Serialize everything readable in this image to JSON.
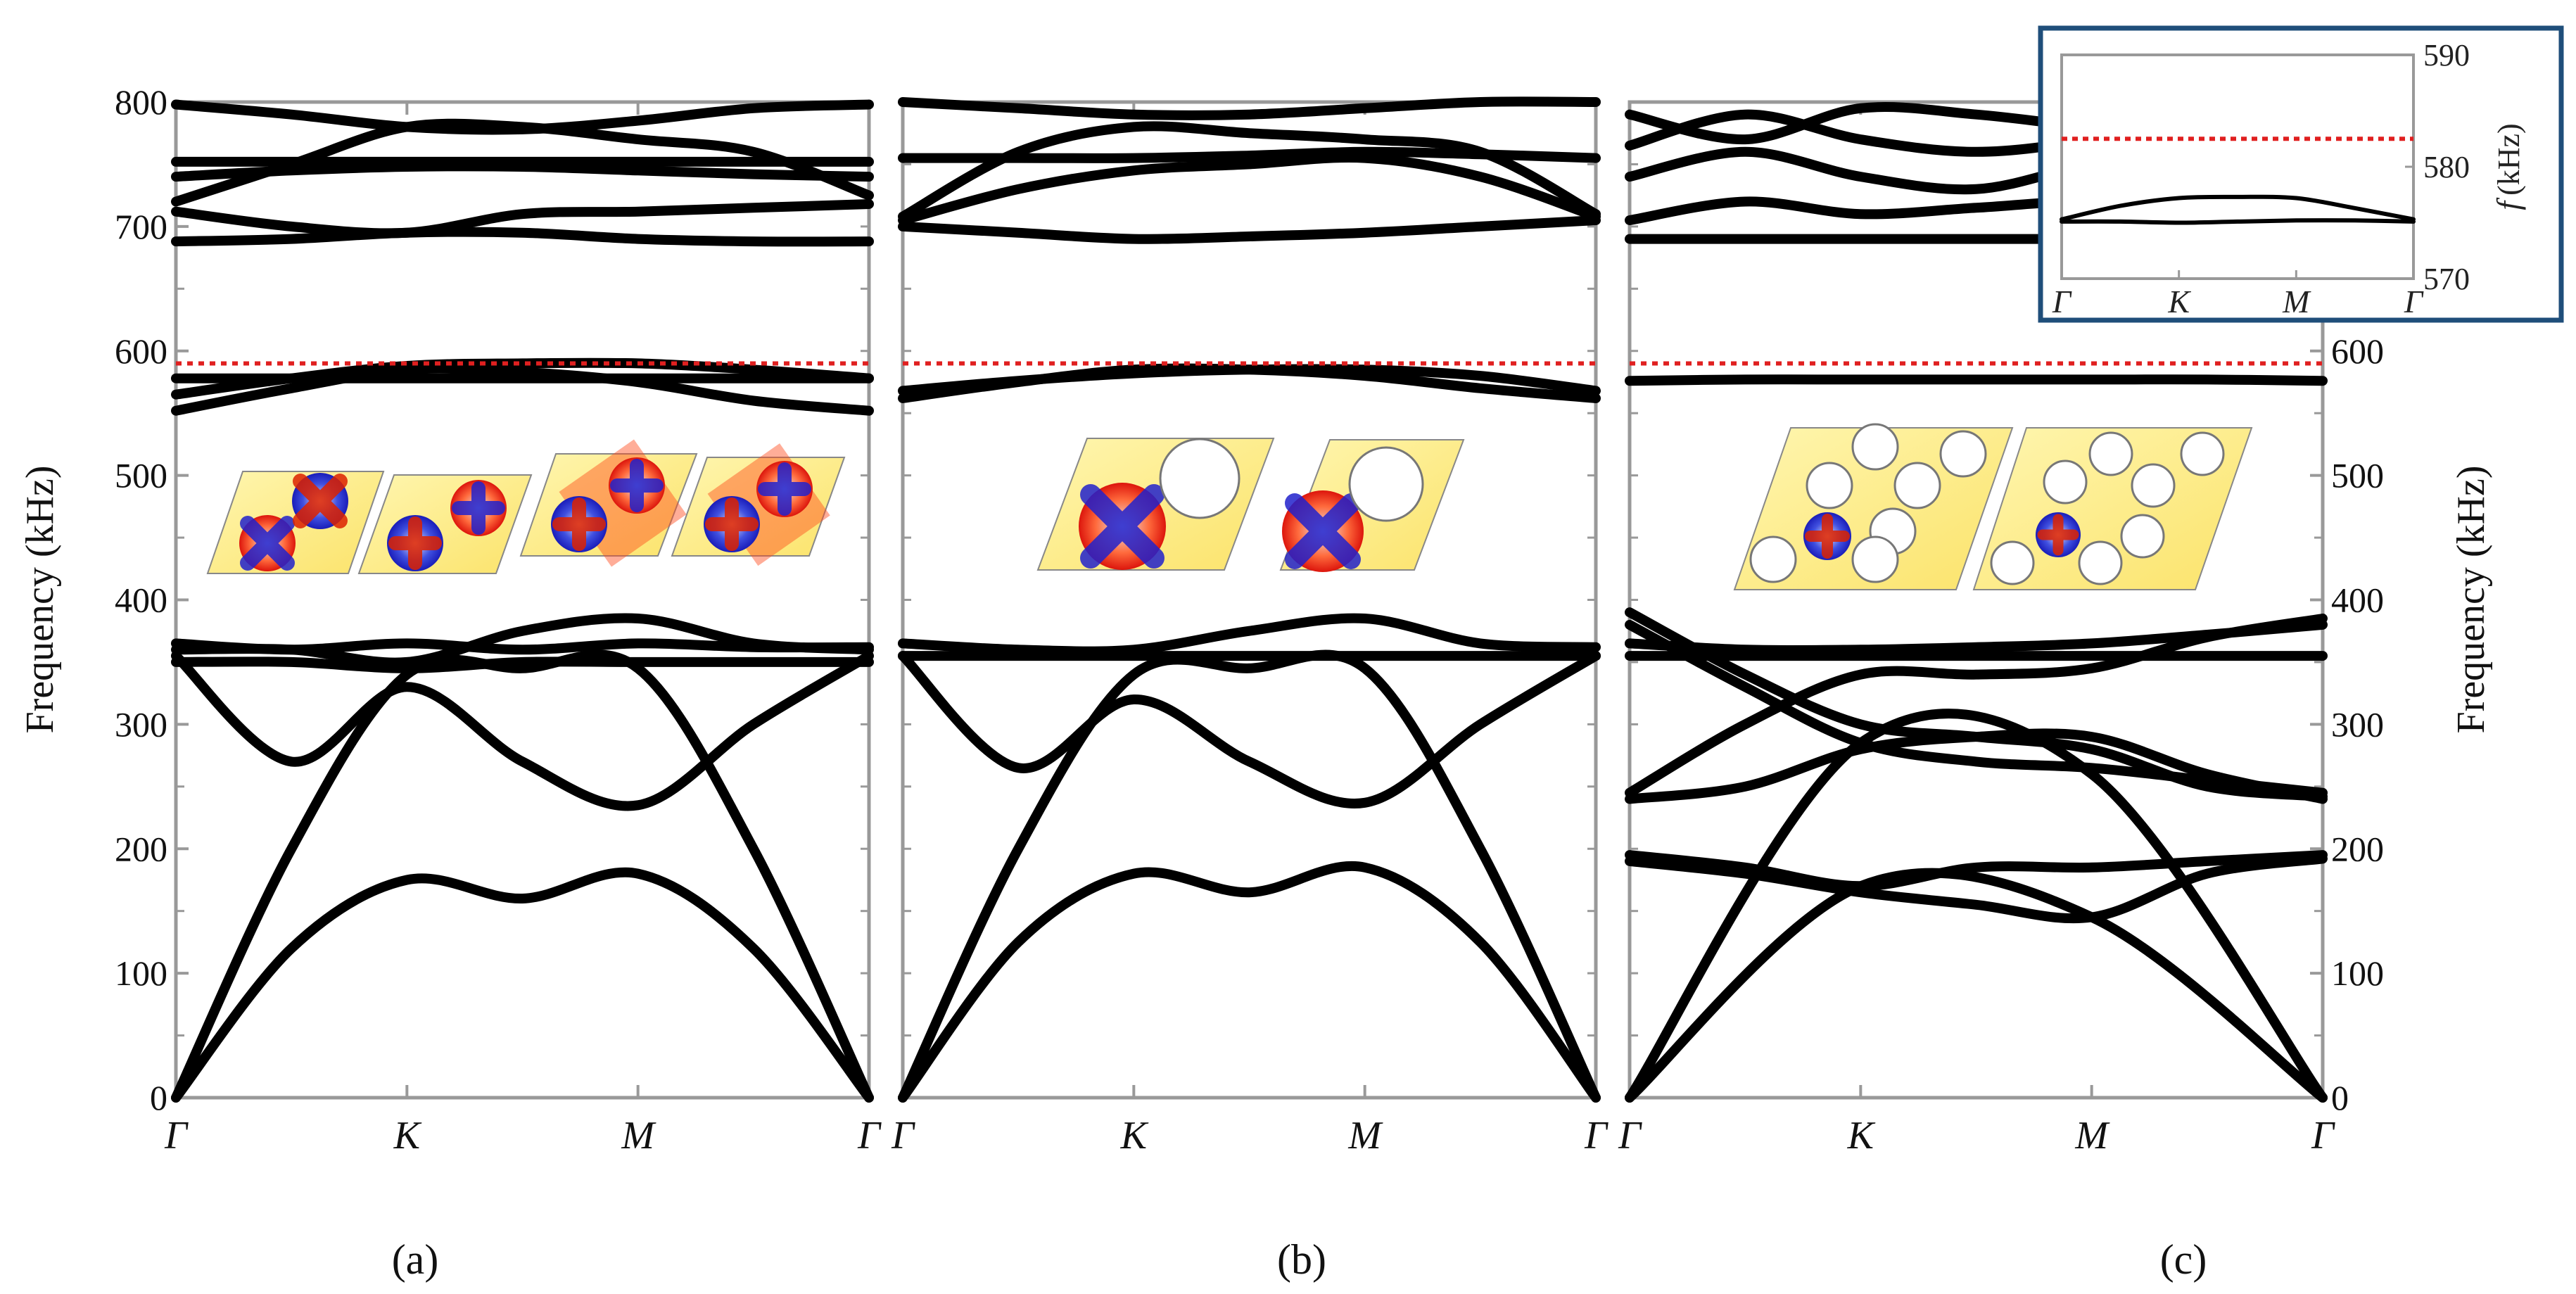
{
  "chart_data": [
    {
      "panel": "a",
      "type": "line",
      "ylabel": "Frequency (kHz)",
      "ylim": [
        0,
        800
      ],
      "yticks": [
        "0",
        "100",
        "200",
        "300",
        "400",
        "500",
        "600",
        "700",
        "800"
      ],
      "xticks": [
        "Γ",
        "K",
        "M",
        "Γ"
      ],
      "caption": "(a)",
      "reference_line": {
        "y": 590,
        "color": "#e02020",
        "style": "dotted"
      },
      "series": [
        {
          "x": [
            0,
            0.5,
            1,
            1.5,
            2,
            2.5,
            3
          ],
          "y": [
            0,
            120,
            175,
            160,
            180,
            120,
            0
          ]
        },
        {
          "x": [
            0,
            0.5,
            1,
            1.5,
            2,
            2.5,
            3
          ],
          "y": [
            0,
            200,
            340,
            345,
            345,
            200,
            0
          ]
        },
        {
          "x": [
            0,
            0.5,
            1,
            1.5,
            2,
            2.5,
            3
          ],
          "y": [
            355,
            270,
            330,
            270,
            235,
            300,
            355
          ]
        },
        {
          "x": [
            0,
            0.5,
            1,
            1.5,
            2,
            2.5,
            3
          ],
          "y": [
            350,
            350,
            345,
            350,
            350,
            350,
            350
          ]
        },
        {
          "x": [
            0,
            0.5,
            1,
            1.5,
            2,
            2.5,
            3
          ],
          "y": [
            360,
            360,
            350,
            375,
            385,
            365,
            360
          ]
        },
        {
          "x": [
            0,
            0.5,
            1,
            1.5,
            2,
            2.5,
            3
          ],
          "y": [
            365,
            360,
            365,
            360,
            365,
            362,
            362
          ]
        },
        {
          "x": [
            0,
            0.5,
            1,
            1.5,
            2,
            2.5,
            3
          ],
          "y": [
            552,
            570,
            585,
            583,
            575,
            560,
            552
          ]
        },
        {
          "x": [
            0,
            0.5,
            1,
            1.5,
            2,
            2.5,
            3
          ],
          "y": [
            565,
            578,
            588,
            590,
            590,
            585,
            578
          ]
        },
        {
          "x": [
            0,
            0.5,
            1,
            1.5,
            2,
            2.5,
            3
          ],
          "y": [
            578,
            578,
            578,
            578,
            578,
            578,
            578
          ]
        },
        {
          "x": [
            0,
            0.5,
            1,
            1.5,
            2,
            2.5,
            3
          ],
          "y": [
            688,
            690,
            695,
            695,
            690,
            688,
            688
          ]
        },
        {
          "x": [
            0,
            0.5,
            1,
            1.5,
            2,
            2.5,
            3
          ],
          "y": [
            712,
            700,
            695,
            710,
            712,
            715,
            718
          ]
        },
        {
          "x": [
            0,
            0.5,
            1,
            1.5,
            2,
            2.5,
            3
          ],
          "y": [
            720,
            750,
            780,
            780,
            770,
            760,
            725
          ]
        },
        {
          "x": [
            0,
            0.5,
            1,
            1.5,
            2,
            2.5,
            3
          ],
          "y": [
            740,
            745,
            748,
            748,
            745,
            742,
            740
          ]
        },
        {
          "x": [
            0,
            0.5,
            1,
            1.5,
            2,
            2.5,
            3
          ],
          "y": [
            752,
            752,
            752,
            752,
            752,
            752,
            752
          ]
        },
        {
          "x": [
            0,
            0.5,
            1,
            1.5,
            2,
            2.5,
            3
          ],
          "y": [
            798,
            790,
            780,
            778,
            785,
            795,
            798
          ]
        }
      ]
    },
    {
      "panel": "b",
      "type": "line",
      "ylim": [
        0,
        800
      ],
      "xticks": [
        "Γ",
        "K",
        "M",
        "Γ"
      ],
      "caption": "(b)",
      "reference_line": {
        "y": 590,
        "color": "#e02020",
        "style": "dotted"
      },
      "series": [
        {
          "x": [
            0,
            0.5,
            1,
            1.5,
            2,
            2.5,
            3
          ],
          "y": [
            0,
            125,
            180,
            165,
            185,
            125,
            0
          ]
        },
        {
          "x": [
            0,
            0.5,
            1,
            1.5,
            2,
            2.5,
            3
          ],
          "y": [
            0,
            200,
            340,
            345,
            345,
            200,
            0
          ]
        },
        {
          "x": [
            0,
            0.5,
            1,
            1.5,
            2,
            2.5,
            3
          ],
          "y": [
            355,
            265,
            320,
            270,
            237,
            300,
            355
          ]
        },
        {
          "x": [
            0,
            0.5,
            1,
            1.5,
            2,
            2.5,
            3
          ],
          "y": [
            355,
            355,
            355,
            355,
            355,
            355,
            355
          ]
        },
        {
          "x": [
            0,
            0.5,
            1,
            1.5,
            2,
            2.5,
            3
          ],
          "y": [
            365,
            360,
            360,
            375,
            385,
            365,
            362
          ]
        },
        {
          "x": [
            0,
            0.5,
            1,
            1.5,
            2,
            2.5,
            3
          ],
          "y": [
            562,
            575,
            585,
            585,
            580,
            570,
            562
          ]
        },
        {
          "x": [
            0,
            0.5,
            1,
            1.5,
            2,
            2.5,
            3
          ],
          "y": [
            568,
            576,
            582,
            585,
            585,
            580,
            568
          ]
        },
        {
          "x": [
            0,
            0.5,
            1,
            1.5,
            2,
            2.5,
            3
          ],
          "y": [
            700,
            695,
            690,
            692,
            695,
            700,
            705
          ]
        },
        {
          "x": [
            0,
            0.5,
            1,
            1.5,
            2,
            2.5,
            3
          ],
          "y": [
            705,
            730,
            745,
            750,
            755,
            740,
            708
          ]
        },
        {
          "x": [
            0,
            0.5,
            1,
            1.5,
            2,
            2.5,
            3
          ],
          "y": [
            708,
            760,
            780,
            775,
            770,
            760,
            710
          ]
        },
        {
          "x": [
            0,
            0.5,
            1,
            1.5,
            2,
            2.5,
            3
          ],
          "y": [
            755,
            755,
            755,
            757,
            760,
            758,
            755
          ]
        },
        {
          "x": [
            0,
            0.5,
            1,
            1.5,
            2,
            2.5,
            3
          ],
          "y": [
            800,
            795,
            790,
            790,
            795,
            800,
            800
          ]
        }
      ]
    },
    {
      "panel": "c",
      "type": "line",
      "ylabel": "Frequency (kHz)",
      "ylim": [
        0,
        800
      ],
      "yticks": [
        "0",
        "100",
        "200",
        "300",
        "400",
        "500",
        "600"
      ],
      "xticks": [
        "Γ",
        "K",
        "M",
        "Γ"
      ],
      "caption": "(c)",
      "reference_line": {
        "y": 590,
        "color": "#e02020",
        "style": "dotted"
      },
      "series": [
        {
          "x": [
            0,
            1,
            2,
            3
          ],
          "y": [
            0,
            170,
            145,
            0
          ]
        },
        {
          "x": [
            0,
            1,
            2,
            3
          ],
          "y": [
            0,
            285,
            260,
            0
          ]
        },
        {
          "x": [
            0,
            0.5,
            1,
            1.5,
            2,
            2.5,
            3
          ],
          "y": [
            195,
            185,
            170,
            185,
            185,
            190,
            195
          ]
        },
        {
          "x": [
            0,
            0.5,
            1,
            1.5,
            2,
            2.5,
            3
          ],
          "y": [
            190,
            180,
            165,
            155,
            145,
            180,
            192
          ]
        },
        {
          "x": [
            0,
            0.5,
            1,
            1.5,
            2,
            2.5,
            3
          ],
          "y": [
            240,
            250,
            280,
            290,
            290,
            260,
            240
          ]
        },
        {
          "x": [
            0,
            0.5,
            1,
            1.5,
            2,
            2.5,
            3
          ],
          "y": [
            245,
            300,
            340,
            340,
            345,
            370,
            385
          ]
        },
        {
          "x": [
            0,
            0.5,
            1,
            1.5,
            2,
            2.5,
            3
          ],
          "y": [
            355,
            355,
            355,
            355,
            355,
            355,
            355
          ]
        },
        {
          "x": [
            0,
            0.5,
            1,
            1.5,
            2,
            2.5,
            3
          ],
          "y": [
            380,
            330,
            285,
            270,
            265,
            255,
            245
          ]
        },
        {
          "x": [
            0,
            0.5,
            1,
            1.5,
            2,
            2.5,
            3
          ],
          "y": [
            390,
            340,
            300,
            290,
            280,
            250,
            242
          ]
        },
        {
          "x": [
            0,
            0.5,
            1,
            1.5,
            2,
            2.5,
            3
          ],
          "y": [
            365,
            360,
            360,
            362,
            365,
            372,
            380
          ]
        },
        {
          "x": [
            0,
            0.5,
            1,
            1.5,
            2,
            2.5,
            3
          ],
          "y": [
            576,
            577,
            577,
            577,
            577,
            577,
            576
          ]
        },
        {
          "x": [
            0,
            0.5,
            1,
            1.5,
            2,
            2.5,
            3
          ],
          "y": [
            690,
            690,
            690,
            690,
            690,
            690,
            690
          ]
        },
        {
          "x": [
            0,
            0.5,
            1,
            1.5,
            2,
            2.5,
            3
          ],
          "y": [
            705,
            720,
            710,
            715,
            720,
            710,
            705
          ]
        },
        {
          "x": [
            0,
            0.5,
            1,
            1.5,
            2,
            2.5,
            3
          ],
          "y": [
            740,
            760,
            740,
            730,
            750,
            760,
            745
          ]
        },
        {
          "x": [
            0,
            0.5,
            1,
            1.5,
            2,
            2.5,
            3
          ],
          "y": [
            765,
            790,
            770,
            760,
            770,
            790,
            770
          ]
        },
        {
          "x": [
            0,
            0.5,
            1,
            1.5,
            2,
            2.5,
            3
          ],
          "y": [
            790,
            770,
            795,
            790,
            780,
            775,
            795
          ]
        }
      ],
      "inset": {
        "ylabel_symbol": "f",
        "ylabel_unit": "(kHz)",
        "ylim": [
          570,
          590
        ],
        "yticks": [
          "570",
          "580",
          "590"
        ],
        "xticks": [
          "Γ",
          "K",
          "M",
          "Γ"
        ],
        "border_color": "#1f4e7a",
        "reference_line": {
          "y": 582.5,
          "color": "#e02020",
          "style": "dotted"
        },
        "series": [
          {
            "x": [
              0,
              0.5,
              1,
              1.5,
              2,
              2.5,
              3
            ],
            "y": [
              575.3,
              576.5,
              577.2,
              577.3,
              577.2,
              576.3,
              575.3
            ]
          },
          {
            "x": [
              0,
              0.5,
              1,
              1.5,
              2,
              2.5,
              3
            ],
            "y": [
              575.1,
              575.1,
              575.0,
              575.1,
              575.2,
              575.2,
              575.1
            ]
          }
        ]
      }
    }
  ]
}
